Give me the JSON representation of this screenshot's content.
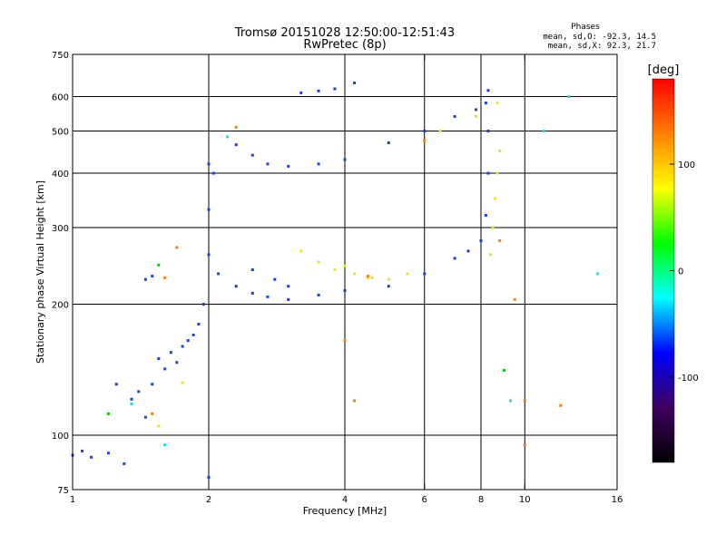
{
  "chart_data": {
    "type": "scatter",
    "title": "Tromsø 20151028 12:50:00-12:51:43",
    "subtitle": "RwPretec (8p)",
    "xlabel": "Frequency [MHz]",
    "ylabel": "Stationary phase Virtual Height [km]",
    "x_scale": "log",
    "y_scale": "log",
    "xlim": [
      1,
      16
    ],
    "ylim": [
      75,
      750
    ],
    "x_ticks": [
      1,
      2,
      4,
      6,
      8,
      10,
      16
    ],
    "y_ticks": [
      75,
      100,
      200,
      300,
      400,
      500,
      600,
      750
    ],
    "grid_x": [
      2,
      4,
      6,
      8,
      10
    ],
    "grid_y": [
      100,
      200,
      300,
      400,
      500,
      600
    ],
    "phases": {
      "header": "Phases",
      "o_line": "mean, sd,O: -92.3, 14.5",
      "x_line": "mean, sd,X:  92.3, 21.7"
    },
    "colorbar": {
      "label": "[deg]",
      "range": [
        -180,
        180
      ],
      "ticks": [
        100,
        0,
        -100
      ],
      "colors": [
        "#ff0000",
        "#ff8000",
        "#ffff00",
        "#00ff00",
        "#00ffff",
        "#0000ff",
        "#400060",
        "#000000"
      ]
    },
    "series": [
      {
        "color": "#1a3fe6",
        "points": [
          [
            1,
            90
          ],
          [
            1.05,
            92
          ],
          [
            1.1,
            89
          ],
          [
            1.2,
            91
          ],
          [
            1.3,
            86
          ],
          [
            1.25,
            131
          ],
          [
            1.35,
            121
          ],
          [
            1.4,
            126
          ],
          [
            1.45,
            110
          ],
          [
            1.5,
            131
          ],
          [
            1.55,
            150
          ],
          [
            1.6,
            142
          ],
          [
            1.65,
            155
          ],
          [
            1.7,
            147
          ],
          [
            1.75,
            160
          ],
          [
            1.8,
            165
          ],
          [
            1.85,
            170
          ],
          [
            1.9,
            180
          ],
          [
            1.95,
            200
          ],
          [
            2,
            260
          ],
          [
            2,
            330
          ],
          [
            2,
            420
          ],
          [
            2.05,
            400
          ],
          [
            2,
            80
          ],
          [
            2.1,
            235
          ],
          [
            2.3,
            220
          ],
          [
            2.5,
            212
          ],
          [
            2.7,
            208
          ],
          [
            3,
            205
          ],
          [
            3.5,
            210
          ],
          [
            4,
            215
          ],
          [
            5,
            220
          ],
          [
            6,
            235
          ],
          [
            7,
            255
          ],
          [
            7.5,
            265
          ],
          [
            8,
            280
          ],
          [
            8.2,
            320
          ],
          [
            8.3,
            400
          ],
          [
            8.3,
            500
          ],
          [
            8.2,
            580
          ],
          [
            8.3,
            620
          ],
          [
            7.8,
            560
          ],
          [
            7,
            540
          ],
          [
            6,
            500
          ],
          [
            5,
            470
          ],
          [
            4,
            430
          ],
          [
            3.5,
            420
          ],
          [
            3,
            415
          ],
          [
            2.7,
            420
          ],
          [
            2.5,
            440
          ],
          [
            2.3,
            465
          ],
          [
            3.2,
            612
          ],
          [
            3.5,
            618
          ],
          [
            3.8,
            625
          ],
          [
            4.2,
            645
          ],
          [
            2.5,
            240
          ],
          [
            2.8,
            228
          ],
          [
            3,
            220
          ],
          [
            1.45,
            228
          ],
          [
            1.5,
            232
          ]
        ]
      },
      {
        "color": "#e6e620",
        "points": [
          [
            3.2,
            265
          ],
          [
            3.5,
            250
          ],
          [
            3.8,
            240
          ],
          [
            4.2,
            235
          ],
          [
            4.6,
            230
          ],
          [
            5,
            228
          ],
          [
            5.5,
            235
          ],
          [
            4,
            245
          ],
          [
            4.5,
            230
          ],
          [
            8.4,
            260
          ],
          [
            8.5,
            300
          ],
          [
            8.6,
            350
          ],
          [
            8.7,
            400
          ],
          [
            8.8,
            450
          ],
          [
            8.7,
            580
          ],
          [
            7.8,
            540
          ],
          [
            6.5,
            500
          ],
          [
            1.75,
            132
          ],
          [
            1.55,
            105
          ]
        ]
      },
      {
        "color": "#ff8000",
        "points": [
          [
            1.7,
            270
          ],
          [
            1.5,
            112
          ],
          [
            2.3,
            510
          ],
          [
            4,
            165
          ],
          [
            4.2,
            120
          ],
          [
            4.5,
            232
          ],
          [
            6,
            475
          ],
          [
            8.8,
            280
          ],
          [
            10,
            95
          ],
          [
            12,
            117
          ],
          [
            9.5,
            205
          ],
          [
            10,
            120
          ],
          [
            1.6,
            230
          ]
        ]
      },
      {
        "color": "#00e5ee",
        "points": [
          [
            1.35,
            118
          ],
          [
            1.6,
            95
          ],
          [
            2.2,
            485
          ],
          [
            9.3,
            120
          ],
          [
            12.5,
            600
          ],
          [
            14.5,
            235
          ],
          [
            11,
            500
          ]
        ]
      },
      {
        "color": "#00d000",
        "points": [
          [
            1.55,
            246
          ],
          [
            1.2,
            112
          ],
          [
            9,
            141
          ]
        ]
      }
    ]
  }
}
